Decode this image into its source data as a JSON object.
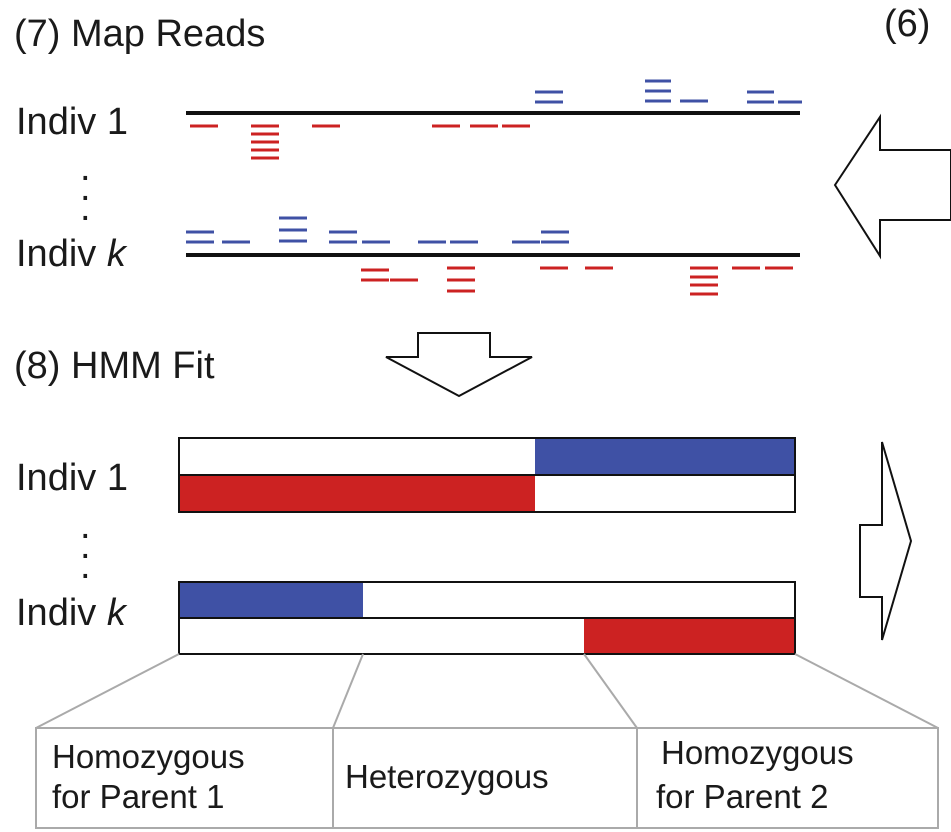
{
  "panel7": {
    "title": "(7) Map Reads",
    "indiv1_label": "Indiv 1",
    "indivk_prefix": "Indiv ",
    "indivk_var": "k"
  },
  "panel6": {
    "title": "(6)"
  },
  "panel8": {
    "title": "(8) HMM Fit",
    "indiv1_label": "Indiv 1",
    "indivk_prefix": "Indiv ",
    "indivk_var": "k"
  },
  "legend": {
    "homozygous_p1_line1": "Homozygous",
    "homozygous_p1_line2": "for Parent 1",
    "heterozygous": "Heterozygous",
    "homozygous_p2_line1": "Homozygous",
    "homozygous_p2_line2": "for Parent 2"
  },
  "colors": {
    "parent1": "#cc2222",
    "parent2": "#3f51a5",
    "line": "#111111",
    "connector": "#aaaaaa"
  }
}
